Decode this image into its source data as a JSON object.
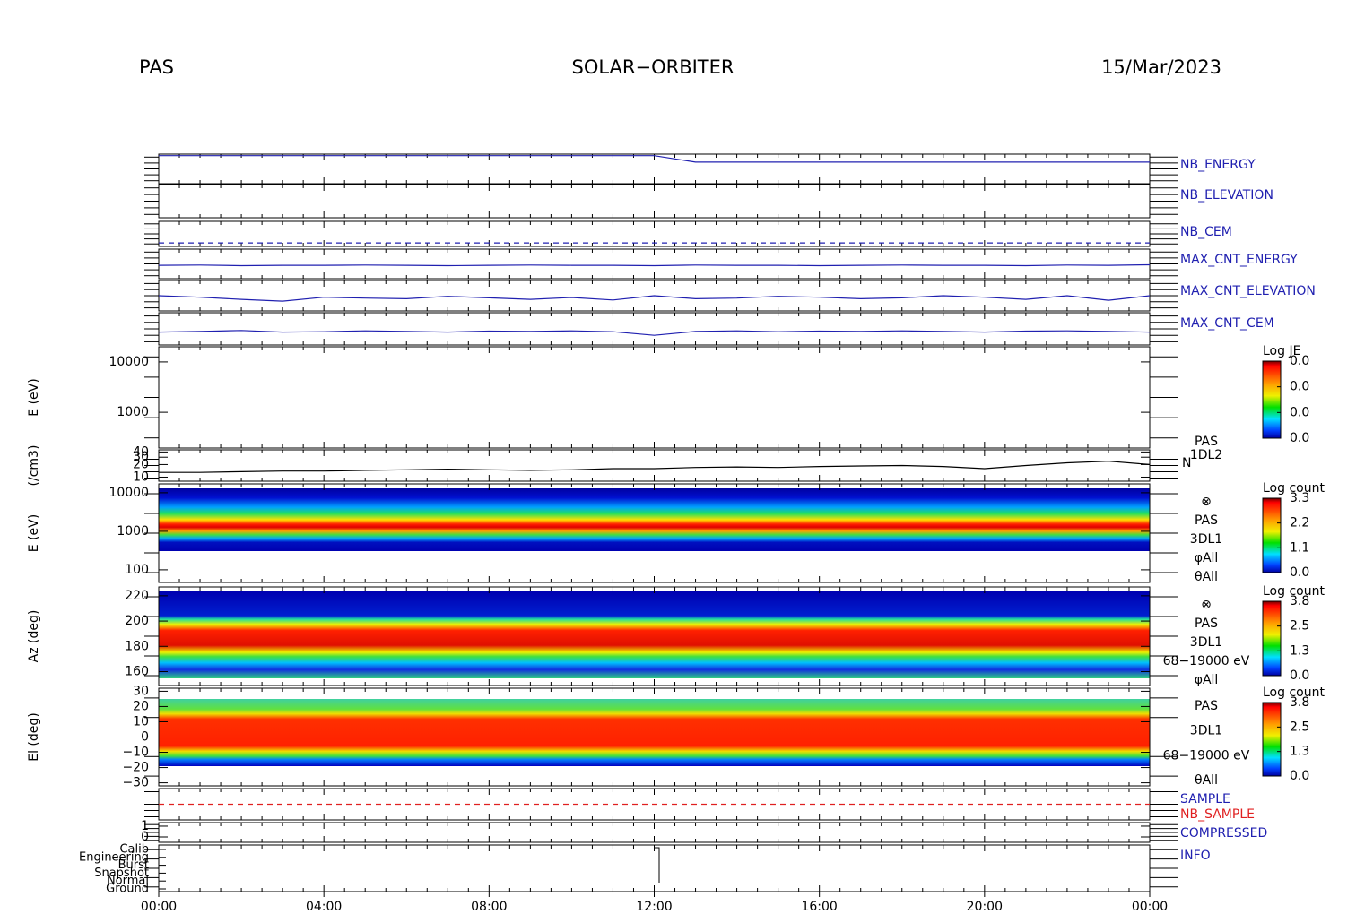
{
  "header": {
    "left": "PAS",
    "center": "SOLAR−ORBITER",
    "right": "15/Mar/2023"
  },
  "xlim": [
    0,
    24
  ],
  "xticks": [
    {
      "value": 0,
      "label": "00:00"
    },
    {
      "value": 4,
      "label": "04:00"
    },
    {
      "value": 8,
      "label": "08:00"
    },
    {
      "value": 12,
      "label": "12:00"
    },
    {
      "value": 16,
      "label": "16:00"
    },
    {
      "value": 20,
      "label": "20:00"
    },
    {
      "value": 24,
      "label": "00:00"
    }
  ],
  "chart_data": [
    {
      "type": "line",
      "ylim": [
        0,
        1
      ],
      "series": [
        {
          "name": "NB_ENERGY",
          "color": "#2020b0",
          "x": [
            0,
            1,
            2,
            3,
            4,
            5,
            6,
            7,
            8,
            9,
            10,
            11,
            12,
            13,
            14,
            15,
            16,
            17,
            18,
            19,
            20,
            21,
            22,
            23,
            24
          ],
          "values": [
            0.95,
            0.95,
            0.95,
            0.95,
            0.95,
            0.95,
            0.95,
            0.95,
            0.95,
            0.95,
            0.95,
            0.95,
            0.95,
            0.73,
            0.73,
            0.73,
            0.73,
            0.73,
            0.73,
            0.73,
            0.73,
            0.73,
            0.73,
            0.73,
            0.73
          ]
        }
      ]
    },
    {
      "type": "line",
      "ylim": [
        0,
        1
      ],
      "series": [
        {
          "name": "NB_ELEVATION",
          "color": "#2020b0"
        }
      ]
    },
    {
      "type": "line",
      "ylim": [
        0,
        1
      ],
      "dashed": true,
      "series": [
        {
          "name": "NB_CEM",
          "color": "#2020b0",
          "x": [
            0,
            1,
            2,
            3,
            4,
            5,
            6,
            7,
            8,
            9,
            10,
            11,
            12,
            13,
            14,
            15,
            16,
            17,
            18,
            19,
            20,
            21,
            22,
            23,
            24
          ],
          "values": [
            0.14,
            0.14,
            0.14,
            0.14,
            0.14,
            0.14,
            0.14,
            0.14,
            0.14,
            0.14,
            0.14,
            0.14,
            0.14,
            0.14,
            0.14,
            0.14,
            0.14,
            0.14,
            0.14,
            0.14,
            0.14,
            0.14,
            0.14,
            0.14,
            0.14
          ]
        }
      ]
    },
    {
      "type": "line",
      "ylim": [
        0,
        1
      ],
      "series": [
        {
          "name": "MAX_CNT_ENERGY",
          "color": "#2020b0",
          "x": [
            0,
            1,
            2,
            3,
            4,
            5,
            6,
            7,
            8,
            9,
            10,
            11,
            12,
            13,
            14,
            15,
            16,
            17,
            18,
            19,
            20,
            21,
            22,
            23,
            24
          ],
          "values": [
            0.45,
            0.46,
            0.44,
            0.45,
            0.45,
            0.46,
            0.45,
            0.44,
            0.45,
            0.46,
            0.45,
            0.45,
            0.44,
            0.46,
            0.45,
            0.45,
            0.44,
            0.45,
            0.46,
            0.45,
            0.45,
            0.44,
            0.46,
            0.45,
            0.47
          ]
        }
      ]
    },
    {
      "type": "line",
      "ylim": [
        0,
        1
      ],
      "series": [
        {
          "name": "MAX_CNT_ELEVATION",
          "color": "#2020b0",
          "x": [
            0,
            1,
            2,
            3,
            4,
            5,
            6,
            7,
            8,
            9,
            10,
            11,
            12,
            13,
            14,
            15,
            16,
            17,
            18,
            19,
            20,
            21,
            22,
            23,
            24
          ],
          "values": [
            0.5,
            0.45,
            0.38,
            0.32,
            0.45,
            0.42,
            0.4,
            0.48,
            0.43,
            0.38,
            0.44,
            0.36,
            0.5,
            0.4,
            0.42,
            0.48,
            0.45,
            0.4,
            0.43,
            0.5,
            0.45,
            0.38,
            0.5,
            0.35,
            0.5
          ]
        }
      ]
    },
    {
      "type": "line",
      "ylim": [
        0,
        1
      ],
      "series": [
        {
          "name": "MAX_CNT_CEM",
          "color": "#2020b0",
          "x": [
            0,
            1,
            2,
            3,
            4,
            5,
            6,
            7,
            8,
            9,
            10,
            11,
            12,
            13,
            14,
            15,
            16,
            17,
            18,
            19,
            20,
            21,
            22,
            23,
            24
          ],
          "values": [
            0.4,
            0.42,
            0.45,
            0.4,
            0.41,
            0.44,
            0.42,
            0.4,
            0.43,
            0.42,
            0.44,
            0.41,
            0.3,
            0.42,
            0.44,
            0.41,
            0.43,
            0.42,
            0.44,
            0.42,
            0.4,
            0.43,
            0.44,
            0.42,
            0.4
          ]
        }
      ]
    },
    {
      "type": "spectrogram",
      "y_label": "E (eV)",
      "log": true,
      "ylim": [
        195,
        20000
      ],
      "yticks": [
        10000,
        1000
      ],
      "colorbar": {
        "title": "Log JE",
        "ticks": [
          "0.0",
          "0.0",
          "0.0",
          "0.0"
        ]
      }
    },
    {
      "type": "line",
      "y_label": "(/cm3)",
      "log": true,
      "ylim": [
        8,
        45
      ],
      "yticks": [
        40,
        30,
        20,
        10
      ],
      "annotations": [
        "PAS",
        "1DL2"
      ],
      "series": [
        {
          "name": "N",
          "color": "#000000",
          "x": [
            0,
            1,
            2,
            3,
            4,
            5,
            6,
            7,
            8,
            9,
            10,
            11,
            12,
            13,
            14,
            15,
            16,
            17,
            18,
            19,
            20,
            21,
            22,
            23,
            24
          ],
          "values": [
            13,
            13,
            13.5,
            14,
            14,
            14.5,
            15,
            15.5,
            15,
            14.5,
            15,
            16,
            16,
            17,
            17.5,
            17,
            18,
            18.5,
            19,
            18,
            16,
            19,
            22,
            24,
            20
          ]
        }
      ]
    },
    {
      "type": "spectrogram",
      "y_label": "E (eV)",
      "log": true,
      "ylim": [
        47,
        17000
      ],
      "yticks": [
        10000,
        1000,
        100
      ],
      "annotations": [
        "⊗",
        "PAS",
        "3DL1",
        "φAll",
        "θAll"
      ],
      "colorbar": {
        "title": "Log count",
        "ticks": [
          "3.3",
          "2.2",
          "1.1",
          "0.0"
        ]
      }
    },
    {
      "type": "spectrogram",
      "y_label": "Az (deg)",
      "ylim": [
        149,
        227
      ],
      "yticks": [
        220,
        200,
        180,
        160
      ],
      "annotations": [
        "⊗",
        "PAS",
        "3DL1",
        "68−19000 eV",
        "φAll"
      ],
      "colorbar": {
        "title": "Log count",
        "ticks": [
          "3.8",
          "2.5",
          "1.3",
          "0.0"
        ]
      }
    },
    {
      "type": "spectrogram",
      "y_label": "El (deg)",
      "ylim": [
        -32,
        32
      ],
      "yticks": [
        30,
        20,
        10,
        0,
        {
          "value": -10,
          "label": "−10"
        },
        {
          "value": -20,
          "label": "−20"
        },
        {
          "value": -30,
          "label": "−30"
        }
      ],
      "annotations": [
        "PAS",
        "3DL1",
        "68−19000 eV",
        "θAll"
      ],
      "colorbar": {
        "title": "Log count",
        "ticks": [
          "3.8",
          "2.5",
          "1.3",
          "0.0"
        ]
      }
    },
    {
      "type": "line",
      "ylim": [
        -1,
        1
      ],
      "dashed": true,
      "series": [
        {
          "name": "SAMPLE",
          "color": "#2020b0"
        },
        {
          "name": "NB_SAMPLE",
          "color": "#e02020",
          "x": [
            0,
            1,
            2,
            3,
            4,
            5,
            6,
            7,
            8,
            9,
            10,
            11,
            12,
            13,
            14,
            15,
            16,
            17,
            18,
            19,
            20,
            21,
            22,
            23,
            24
          ],
          "values": [
            0,
            0,
            0,
            0,
            0,
            0,
            0,
            0,
            0,
            0,
            0,
            0,
            0,
            0,
            0,
            0,
            0,
            0,
            0,
            0,
            0,
            0,
            0,
            0,
            0
          ]
        }
      ]
    },
    {
      "type": "line",
      "ylim": [
        -0.5,
        1.33
      ],
      "yticks": [
        1,
        0
      ],
      "series": [
        {
          "name": "COMPRESSED",
          "color": "#2020b0"
        }
      ]
    },
    {
      "type": "state",
      "categories": [
        "Calib",
        "Engineering",
        "Burst",
        "Snapshot",
        "Normal",
        "Ground"
      ],
      "series": [
        {
          "name": "INFO",
          "color": "#2020b0"
        }
      ]
    }
  ]
}
